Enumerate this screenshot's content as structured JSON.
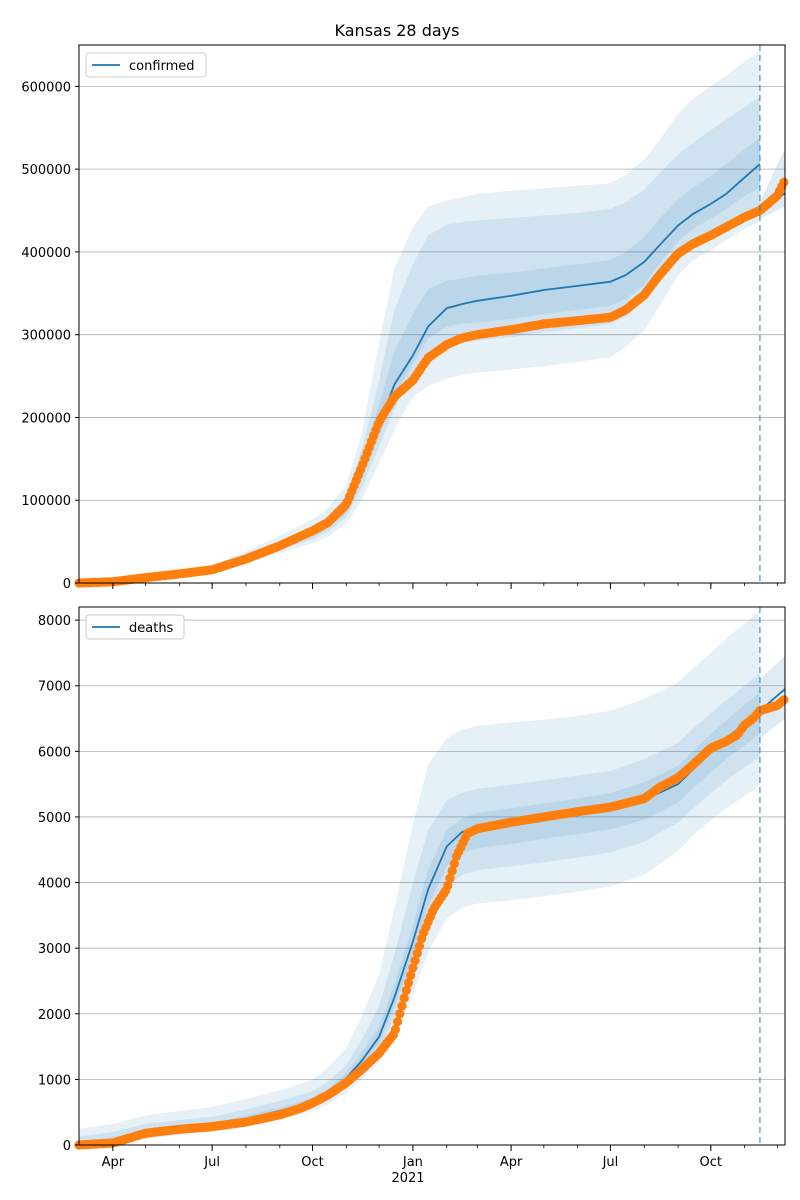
{
  "colors": {
    "line": "#1f77b4",
    "dots": "#ff7f0e",
    "band": "#1f77b4",
    "grid": "#b0b0b0"
  },
  "x_axis": {
    "date_start": "2020-03-01",
    "date_end": "2021-12-08",
    "ticks": [
      {
        "date": "2020-04-01",
        "label": "Apr"
      },
      {
        "date": "2020-07-01",
        "label": "Jul"
      },
      {
        "date": "2020-10-01",
        "label": "Oct"
      },
      {
        "date": "2021-01-01",
        "label": "Jan"
      },
      {
        "date": "2021-04-01",
        "label": "Apr"
      },
      {
        "date": "2021-07-01",
        "label": "Jul"
      },
      {
        "date": "2021-10-01",
        "label": "Oct"
      }
    ],
    "year_label": "2021",
    "forecast_date": "2021-11-15"
  },
  "chart_data": [
    {
      "type": "line",
      "title": "Kansas 28 days",
      "legend": {
        "label": "confirmed",
        "placement": "top-left"
      },
      "ylim": [
        0,
        650000
      ],
      "yticks": [
        0,
        100000,
        200000,
        300000,
        400000,
        500000,
        600000
      ],
      "grid": "horizontal",
      "model_line": {
        "x": [
          "2020-03-01",
          "2020-04-01",
          "2020-05-01",
          "2020-06-01",
          "2020-07-01",
          "2020-08-01",
          "2020-09-01",
          "2020-10-01",
          "2020-10-15",
          "2020-11-01",
          "2020-11-15",
          "2020-12-01",
          "2020-12-15",
          "2021-01-01",
          "2021-01-15",
          "2021-02-01",
          "2021-02-15",
          "2021-03-01",
          "2021-04-01",
          "2021-05-01",
          "2021-06-01",
          "2021-07-01",
          "2021-07-15",
          "2021-08-01",
          "2021-08-15",
          "2021-09-01",
          "2021-09-15",
          "2021-10-01",
          "2021-10-15",
          "2021-11-01",
          "2021-11-15"
        ],
        "y": [
          0,
          2000,
          7000,
          11000,
          17000,
          30000,
          45000,
          60000,
          70000,
          90000,
          135000,
          190000,
          240000,
          275000,
          310000,
          332000,
          337000,
          341000,
          347000,
          354000,
          359000,
          364000,
          372000,
          388000,
          408000,
          432000,
          446000,
          458000,
          470000,
          490000,
          506000
        ]
      },
      "post_line": {
        "x": [
          "2021-11-15",
          "2021-12-08"
        ],
        "y": [
          450000,
          471000
        ]
      },
      "bands": [
        {
          "lower": [
            0,
            1800,
            6000,
            9000,
            14000,
            24000,
            36000,
            48000,
            56000,
            72000,
            100000,
            145000,
            185000,
            225000,
            238000,
            247000,
            251000,
            254000,
            258000,
            262000,
            267000,
            273000,
            285000,
            305000,
            335000,
            372000,
            390000,
            402000,
            414000,
            428000,
            437000
          ],
          "upper": [
            0,
            2600,
            8500,
            13500,
            21000,
            38000,
            57000,
            77000,
            90000,
            118000,
            180000,
            290000,
            380000,
            430000,
            455000,
            462000,
            466000,
            470000,
            474000,
            477000,
            480000,
            483000,
            493000,
            512000,
            535000,
            567000,
            585000,
            600000,
            613000,
            630000,
            642000
          ]
        },
        {
          "lower": [
            0,
            1900,
            6500,
            10000,
            15500,
            27000,
            40000,
            53000,
            62000,
            80000,
            115000,
            165000,
            210000,
            255000,
            278000,
            287000,
            290000,
            293000,
            297000,
            303000,
            308000,
            313000,
            322000,
            342000,
            368000,
            397000,
            412000,
            423000,
            434000,
            446000,
            455000
          ],
          "upper": [
            0,
            2300,
            7800,
            12500,
            19000,
            34000,
            51000,
            69000,
            80000,
            105000,
            160000,
            245000,
            330000,
            385000,
            420000,
            433000,
            436000,
            438000,
            441000,
            444000,
            447000,
            452000,
            460000,
            475000,
            495000,
            518000,
            532000,
            547000,
            560000,
            575000,
            587000
          ]
        },
        {
          "lower": [
            0,
            1950,
            6800,
            10500,
            16300,
            28500,
            42500,
            56500,
            66000,
            85000,
            125000,
            178000,
            225000,
            265000,
            295000,
            310000,
            313000,
            315000,
            319000,
            325000,
            330000,
            335000,
            343000,
            360000,
            386000,
            413000,
            428000,
            440000,
            452000,
            468000,
            478000
          ],
          "upper": [
            0,
            2100,
            7300,
            11600,
            18000,
            32000,
            48000,
            64000,
            75000,
            97000,
            147000,
            215000,
            280000,
            325000,
            355000,
            365000,
            368000,
            371000,
            375000,
            380000,
            385000,
            390000,
            400000,
            418000,
            440000,
            463000,
            478000,
            492000,
            506000,
            524000,
            538000
          ]
        }
      ],
      "post_band": {
        "x": [
          "2021-11-15",
          "2021-12-08"
        ],
        "lower": [
          440000,
          455000
        ],
        "upper": [
          460000,
          525000
        ]
      },
      "observed": {
        "x": [
          "2020-03-01",
          "2020-04-01",
          "2020-05-01",
          "2020-06-01",
          "2020-07-01",
          "2020-08-01",
          "2020-09-01",
          "2020-10-01",
          "2020-10-15",
          "2020-11-01",
          "2020-11-15",
          "2020-12-01",
          "2020-12-15",
          "2021-01-01",
          "2021-01-15",
          "2021-02-01",
          "2021-02-15",
          "2021-03-01",
          "2021-04-01",
          "2021-05-01",
          "2021-06-01",
          "2021-07-01",
          "2021-07-15",
          "2021-08-01",
          "2021-08-15",
          "2021-09-01",
          "2021-09-15",
          "2021-10-01",
          "2021-10-15",
          "2021-11-01",
          "2021-11-15",
          "2021-12-01",
          "2021-12-08"
        ],
        "y": [
          0,
          1500,
          6500,
          11000,
          16000,
          29000,
          45000,
          63000,
          73000,
          95000,
          140000,
          195000,
          225000,
          245000,
          272000,
          288000,
          296000,
          300000,
          306000,
          313000,
          317000,
          321000,
          330000,
          348000,
          372000,
          398000,
          410000,
          420000,
          430000,
          442000,
          450000,
          468000,
          487000
        ]
      }
    },
    {
      "type": "line",
      "title": "",
      "legend": {
        "label": "deaths",
        "placement": "top-left"
      },
      "ylim": [
        0,
        8200
      ],
      "yticks": [
        0,
        1000,
        2000,
        3000,
        4000,
        5000,
        6000,
        7000,
        8000
      ],
      "grid": "horizontal",
      "model_line": {
        "x": [
          "2020-03-01",
          "2020-04-01",
          "2020-05-01",
          "2020-06-01",
          "2020-07-01",
          "2020-08-01",
          "2020-09-01",
          "2020-10-01",
          "2020-10-15",
          "2020-11-01",
          "2020-11-15",
          "2020-12-01",
          "2020-12-15",
          "2021-01-01",
          "2021-01-15",
          "2021-02-01",
          "2021-02-15",
          "2021-03-01",
          "2021-04-01",
          "2021-05-01",
          "2021-06-01",
          "2021-07-01",
          "2021-08-01",
          "2021-09-01",
          "2021-09-15",
          "2021-10-01",
          "2021-10-15",
          "2021-11-01",
          "2021-11-15"
        ],
        "y": [
          0,
          60,
          190,
          250,
          300,
          400,
          520,
          650,
          790,
          1020,
          1280,
          1650,
          2250,
          3100,
          3900,
          4550,
          4770,
          4850,
          4920,
          5000,
          5070,
          5140,
          5260,
          5500,
          5730,
          5990,
          6200,
          6420,
          6620
        ]
      },
      "post_line": {
        "x": [
          "2021-11-15",
          "2021-12-08"
        ],
        "y": [
          6620,
          6950
        ]
      },
      "bands": [
        {
          "lower": [
            0,
            10,
            100,
            150,
            200,
            280,
            400,
            520,
            620,
            800,
            1000,
            1250,
            1650,
            2300,
            2950,
            3450,
            3620,
            3680,
            3730,
            3790,
            3860,
            3940,
            4120,
            4480,
            4720,
            4950,
            5130,
            5320,
            5480
          ],
          "upper": [
            250,
            320,
            450,
            520,
            580,
            700,
            830,
            1000,
            1180,
            1480,
            1950,
            2600,
            3600,
            4900,
            5800,
            6200,
            6330,
            6390,
            6440,
            6480,
            6540,
            6620,
            6800,
            7050,
            7270,
            7500,
            7720,
            7950,
            8150
          ]
        },
        {
          "lower": [
            0,
            30,
            140,
            200,
            250,
            340,
            460,
            590,
            700,
            900,
            1130,
            1440,
            1950,
            2700,
            3400,
            3950,
            4120,
            4190,
            4250,
            4310,
            4380,
            4460,
            4620,
            4920,
            5130,
            5360,
            5550,
            5760,
            5920
          ],
          "upper": [
            130,
            200,
            320,
            380,
            430,
            540,
            670,
            820,
            960,
            1220,
            1600,
            2120,
            2900,
            4000,
            4800,
            5250,
            5370,
            5430,
            5490,
            5560,
            5630,
            5700,
            5880,
            6130,
            6350,
            6580,
            6780,
            7000,
            7190
          ]
        },
        {
          "lower": [
            0,
            45,
            165,
            225,
            275,
            370,
            490,
            620,
            745,
            960,
            1210,
            1550,
            2100,
            2900,
            3650,
            4250,
            4450,
            4520,
            4590,
            4670,
            4740,
            4810,
            4960,
            5220,
            5440,
            5680,
            5880,
            6090,
            6270
          ],
          "upper": [
            60,
            120,
            230,
            290,
            340,
            450,
            570,
            720,
            850,
            1100,
            1400,
            1800,
            2450,
            3350,
            4200,
            4800,
            4980,
            5060,
            5130,
            5210,
            5280,
            5360,
            5530,
            5780,
            6010,
            6270,
            6470,
            6710,
            6900
          ]
        }
      ],
      "post_band": {
        "x": [
          "2021-11-15",
          "2021-12-08"
        ],
        "lower": [
          6200,
          6500
        ],
        "upper": [
          7100,
          7450
        ]
      },
      "observed": {
        "x": [
          "2020-03-01",
          "2020-04-01",
          "2020-05-01",
          "2020-06-01",
          "2020-07-01",
          "2020-08-01",
          "2020-09-01",
          "2020-09-20",
          "2020-10-01",
          "2020-10-15",
          "2020-11-01",
          "2020-11-15",
          "2020-12-01",
          "2020-12-15",
          "2020-12-25",
          "2021-01-01",
          "2021-01-10",
          "2021-01-20",
          "2021-02-01",
          "2021-02-10",
          "2021-02-20",
          "2021-03-01",
          "2021-04-01",
          "2021-05-01",
          "2021-06-01",
          "2021-07-01",
          "2021-08-01",
          "2021-08-15",
          "2021-09-01",
          "2021-09-15",
          "2021-10-01",
          "2021-10-15",
          "2021-10-25",
          "2021-11-01",
          "2021-11-10",
          "2021-11-15",
          "2021-12-01",
          "2021-12-08"
        ],
        "y": [
          0,
          30,
          180,
          240,
          280,
          350,
          460,
          560,
          640,
          760,
          950,
          1150,
          1400,
          1700,
          2300,
          2700,
          3200,
          3600,
          3900,
          4400,
          4750,
          4820,
          4920,
          5000,
          5080,
          5150,
          5280,
          5450,
          5600,
          5800,
          6050,
          6150,
          6250,
          6400,
          6520,
          6620,
          6700,
          6800
        ]
      }
    }
  ]
}
